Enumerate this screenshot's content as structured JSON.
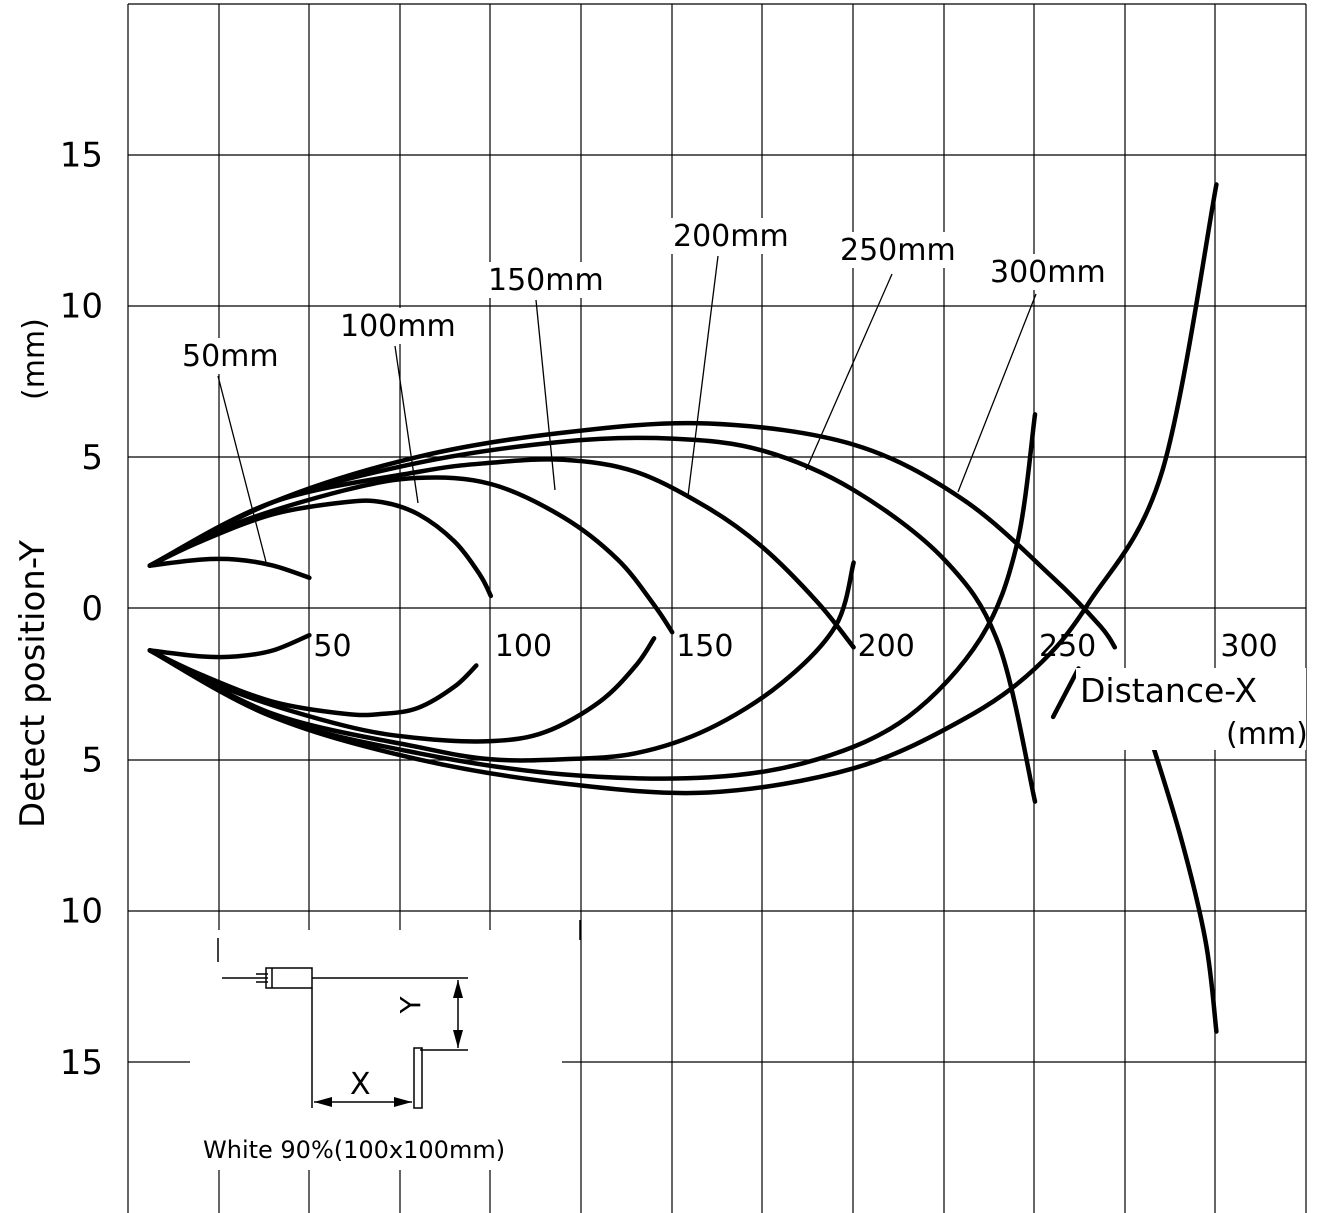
{
  "chart_data": {
    "type": "line",
    "xlabel": "Distance-X",
    "xlabel_unit": "(mm)",
    "ylabel": "Detect position-Y",
    "ylabel_unit": "(mm)",
    "xlim": [
      -10,
      330
    ],
    "ylim": [
      -20,
      20
    ],
    "grid": true,
    "x_ticks": [
      "50",
      "100",
      "150",
      "200",
      "250",
      "300"
    ],
    "x_tick_values": [
      50,
      100,
      150,
      200,
      250,
      300
    ],
    "y_ticks": [
      "15",
      "10",
      "5",
      "0",
      "5",
      "10",
      "15"
    ],
    "y_tick_values": [
      15,
      10,
      5,
      0,
      -5,
      -10,
      -15
    ],
    "series": [
      {
        "name": "50mm",
        "x": [
          6,
          20,
          30,
          40,
          50
        ],
        "y": [
          1.4,
          1.6,
          1.6,
          1.4,
          1.0
        ]
      },
      {
        "name": "50mm",
        "x": [
          6,
          20,
          30,
          40,
          50
        ],
        "y": [
          -1.4,
          -1.6,
          -1.6,
          -1.4,
          -0.9
        ]
      },
      {
        "name": "100mm",
        "x": [
          6,
          20,
          40,
          60,
          70,
          80,
          90,
          97,
          100
        ],
        "y": [
          1.4,
          2.2,
          3.1,
          3.5,
          3.5,
          3.1,
          2.2,
          1.1,
          0.4
        ]
      },
      {
        "name": "100mm",
        "x": [
          6,
          20,
          40,
          60,
          70,
          80,
          90,
          96
        ],
        "y": [
          -1.4,
          -2.2,
          -3.1,
          -3.5,
          -3.5,
          -3.3,
          -2.6,
          -1.9
        ]
      },
      {
        "name": "150mm",
        "x": [
          6,
          30,
          60,
          80,
          100,
          120,
          135,
          145,
          150
        ],
        "y": [
          1.4,
          2.8,
          3.9,
          4.3,
          4.1,
          3.0,
          1.6,
          0.1,
          -0.8
        ]
      },
      {
        "name": "150mm",
        "x": [
          6,
          30,
          60,
          80,
          100,
          115,
          130,
          140,
          145
        ],
        "y": [
          -1.4,
          -2.8,
          -3.9,
          -4.3,
          -4.4,
          -4.1,
          -3.1,
          -1.9,
          -1.0
        ]
      },
      {
        "name": "200mm",
        "x": [
          6,
          40,
          80,
          100,
          120,
          140,
          160,
          175,
          190,
          200
        ],
        "y": [
          1.4,
          3.5,
          4.5,
          4.8,
          4.9,
          4.5,
          3.3,
          2.0,
          0.2,
          -1.3
        ]
      },
      {
        "name": "200mm",
        "x": [
          6,
          40,
          80,
          100,
          120,
          140,
          160,
          180,
          195,
          200
        ],
        "y": [
          -1.4,
          -3.5,
          -4.6,
          -5.0,
          -5.0,
          -4.8,
          -4.0,
          -2.5,
          -0.6,
          1.5
        ]
      },
      {
        "name": "250mm",
        "x": [
          6,
          40,
          80,
          120,
          150,
          175,
          200,
          225,
          240,
          250
        ],
        "y": [
          1.4,
          3.5,
          4.8,
          5.5,
          5.6,
          5.2,
          3.9,
          1.6,
          -1.2,
          -6.4
        ]
      },
      {
        "name": "250mm",
        "x": [
          6,
          40,
          80,
          120,
          160,
          190,
          215,
          235,
          245,
          250
        ],
        "y": [
          -1.4,
          -3.6,
          -4.8,
          -5.5,
          -5.6,
          -5.0,
          -3.6,
          -1.0,
          2.1,
          6.4
        ]
      },
      {
        "name": "300mm",
        "x": [
          6,
          40,
          80,
          120,
          160,
          200,
          230,
          255,
          268,
          272
        ],
        "y": [
          1.4,
          3.5,
          5.0,
          5.8,
          6.1,
          5.4,
          3.6,
          1.0,
          -0.6,
          -1.3
        ]
      },
      {
        "name": "300mm",
        "x": [
          6,
          40,
          80,
          120,
          160,
          200,
          230,
          250,
          265,
          285,
          300
        ],
        "y": [
          -1.4,
          -3.6,
          -5.0,
          -5.8,
          -6.1,
          -5.3,
          -3.7,
          -2.0,
          0.2,
          4.5,
          14.0
        ]
      },
      {
        "name": "300mm",
        "x": [
          280,
          290,
          297,
          300
        ],
        "y": [
          -3.6,
          -7.5,
          -11.0,
          -14.0
        ]
      },
      {
        "name": "300mm",
        "x": [
          255,
          262
        ],
        "y": [
          -3.6,
          -2.0
        ]
      }
    ],
    "annotations": [
      "50mm",
      "100mm",
      "150mm",
      "200mm",
      "250mm",
      "300mm"
    ],
    "inset": {
      "x_label": "X",
      "y_label": "Y",
      "caption": "White 90%(100x100mm)"
    }
  }
}
